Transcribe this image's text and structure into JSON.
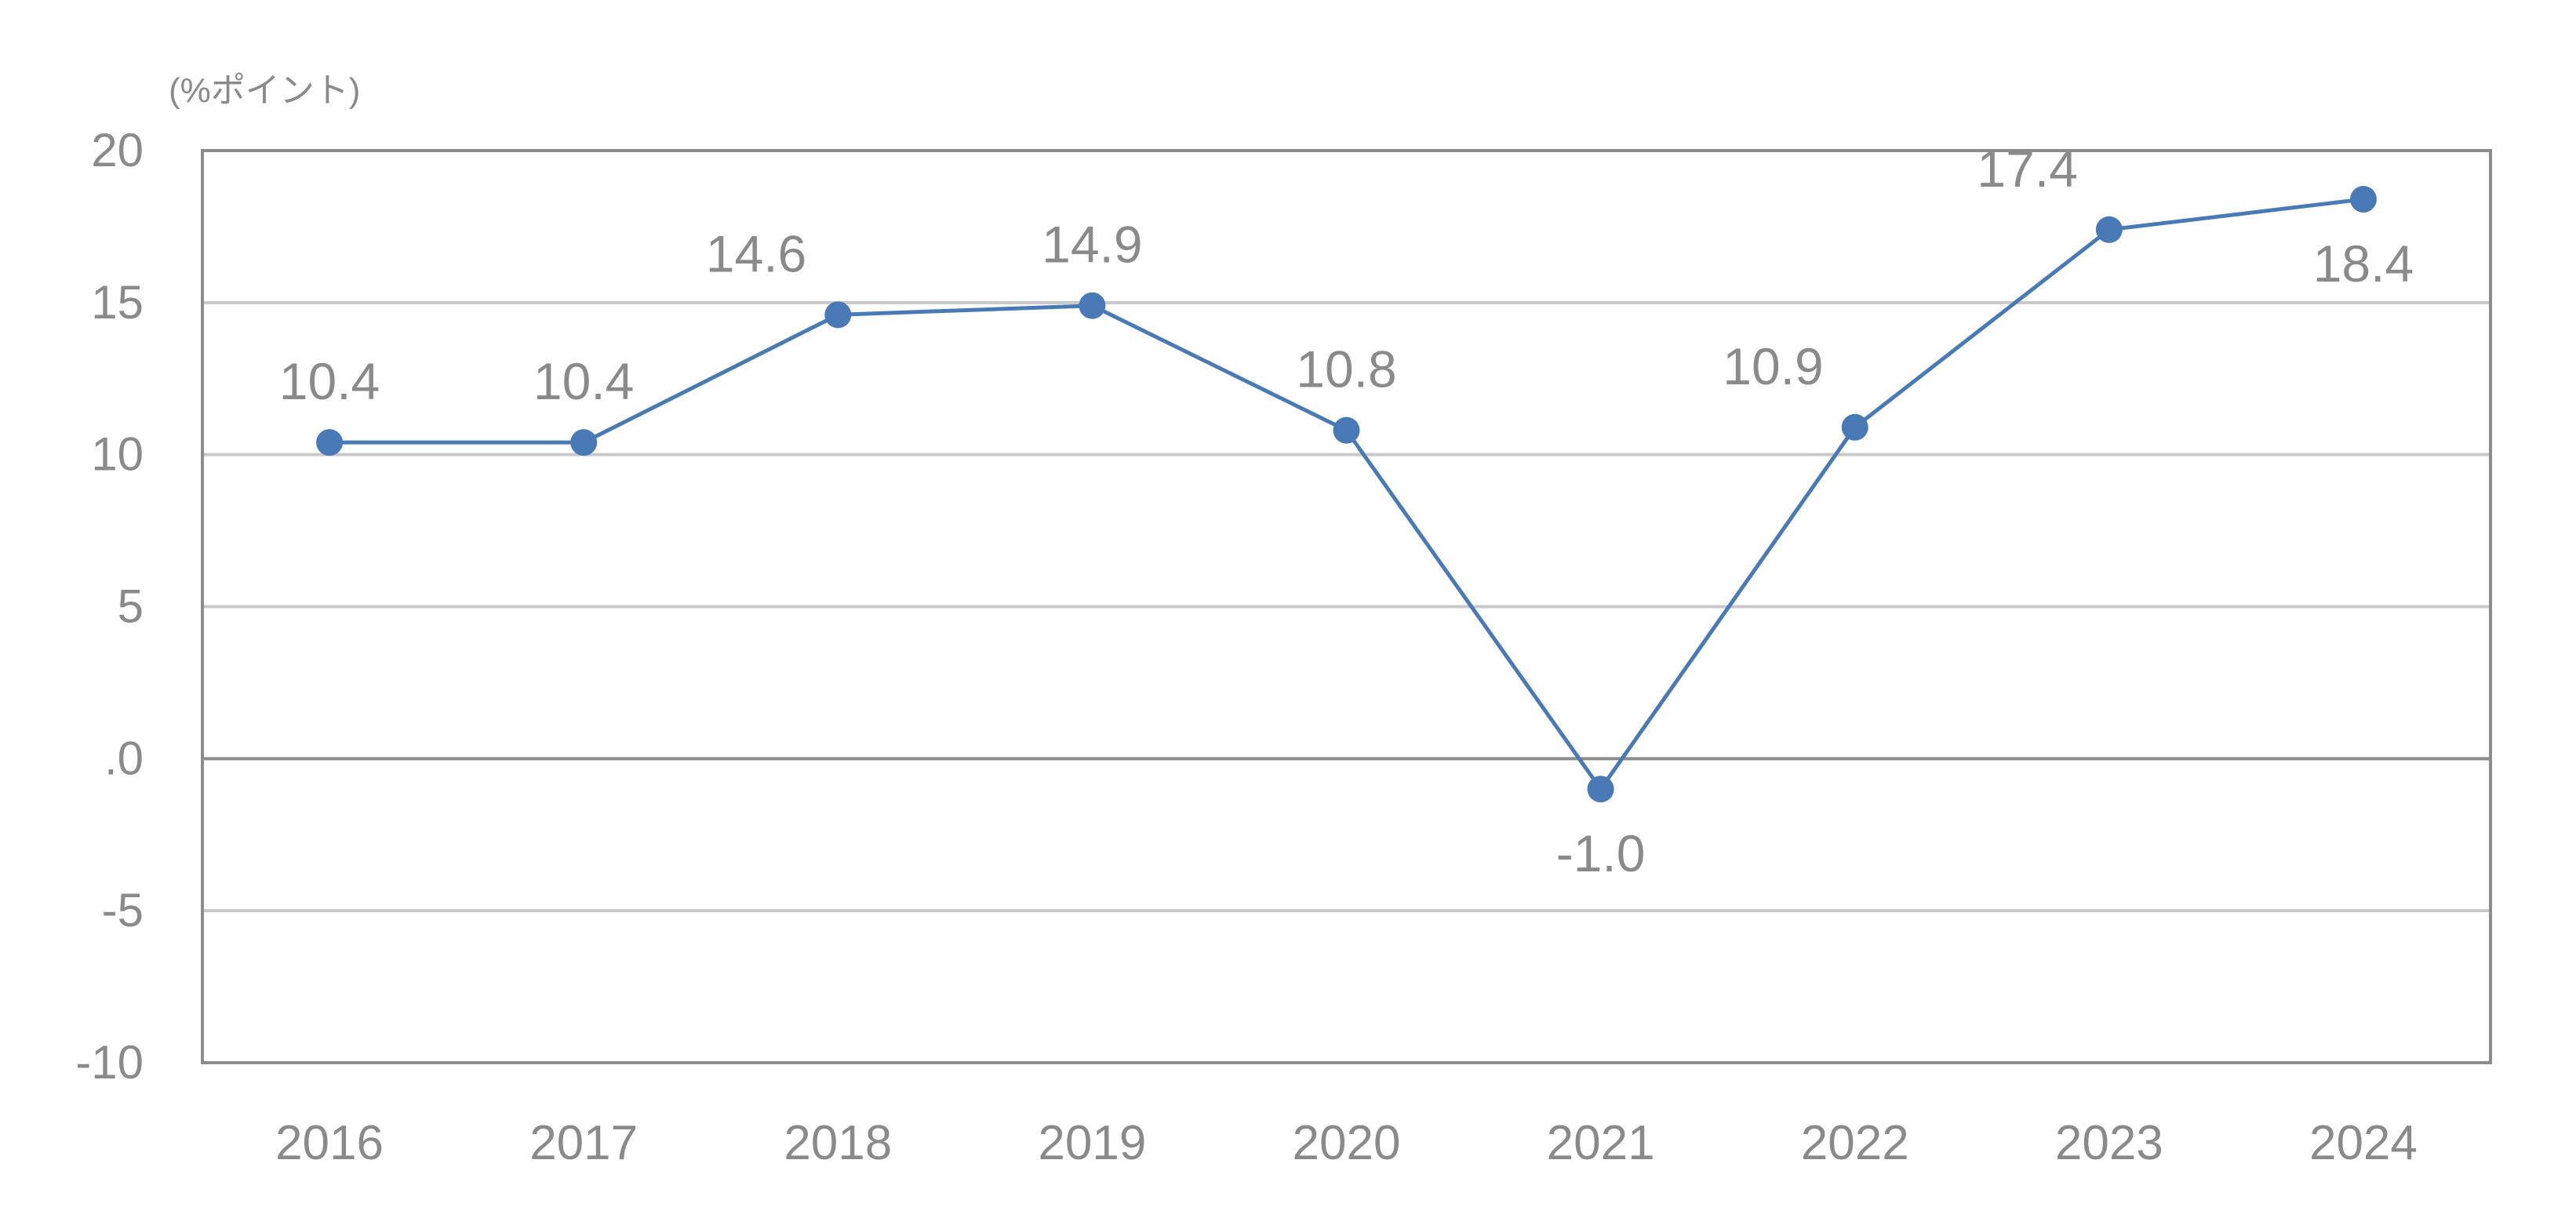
{
  "chart_data": {
    "type": "line",
    "title": "",
    "xlabel": "",
    "ylabel": "(%ポイント)",
    "categories": [
      "2016",
      "2017",
      "2018",
      "2019",
      "2020",
      "2021",
      "2022",
      "2023",
      "2024"
    ],
    "series": [
      {
        "values": [
          10.4,
          10.4,
          14.6,
          14.9,
          10.8,
          -1.0,
          10.9,
          17.4,
          18.4
        ]
      }
    ],
    "data_labels": [
      "10.4",
      "10.4",
      "14.6",
      "14.9",
      "10.8",
      "-1.0",
      "10.9",
      "17.4",
      "18.4"
    ],
    "ylim": [
      -10,
      20
    ],
    "yticks": [
      20,
      15,
      10,
      5,
      0,
      -5,
      -10
    ],
    "ytick_labels": [
      "20",
      "15",
      "10",
      "5",
      ".0",
      "-5",
      "-10"
    ],
    "grid": true,
    "legend": "none",
    "colors": {
      "line": "#4a7ab5",
      "marker": "#4a7ab5",
      "grid": "#c8c8c8",
      "zero_line": "#8c8c8c",
      "frame": "#8c8c8c",
      "text": "#8a8a8a"
    }
  }
}
